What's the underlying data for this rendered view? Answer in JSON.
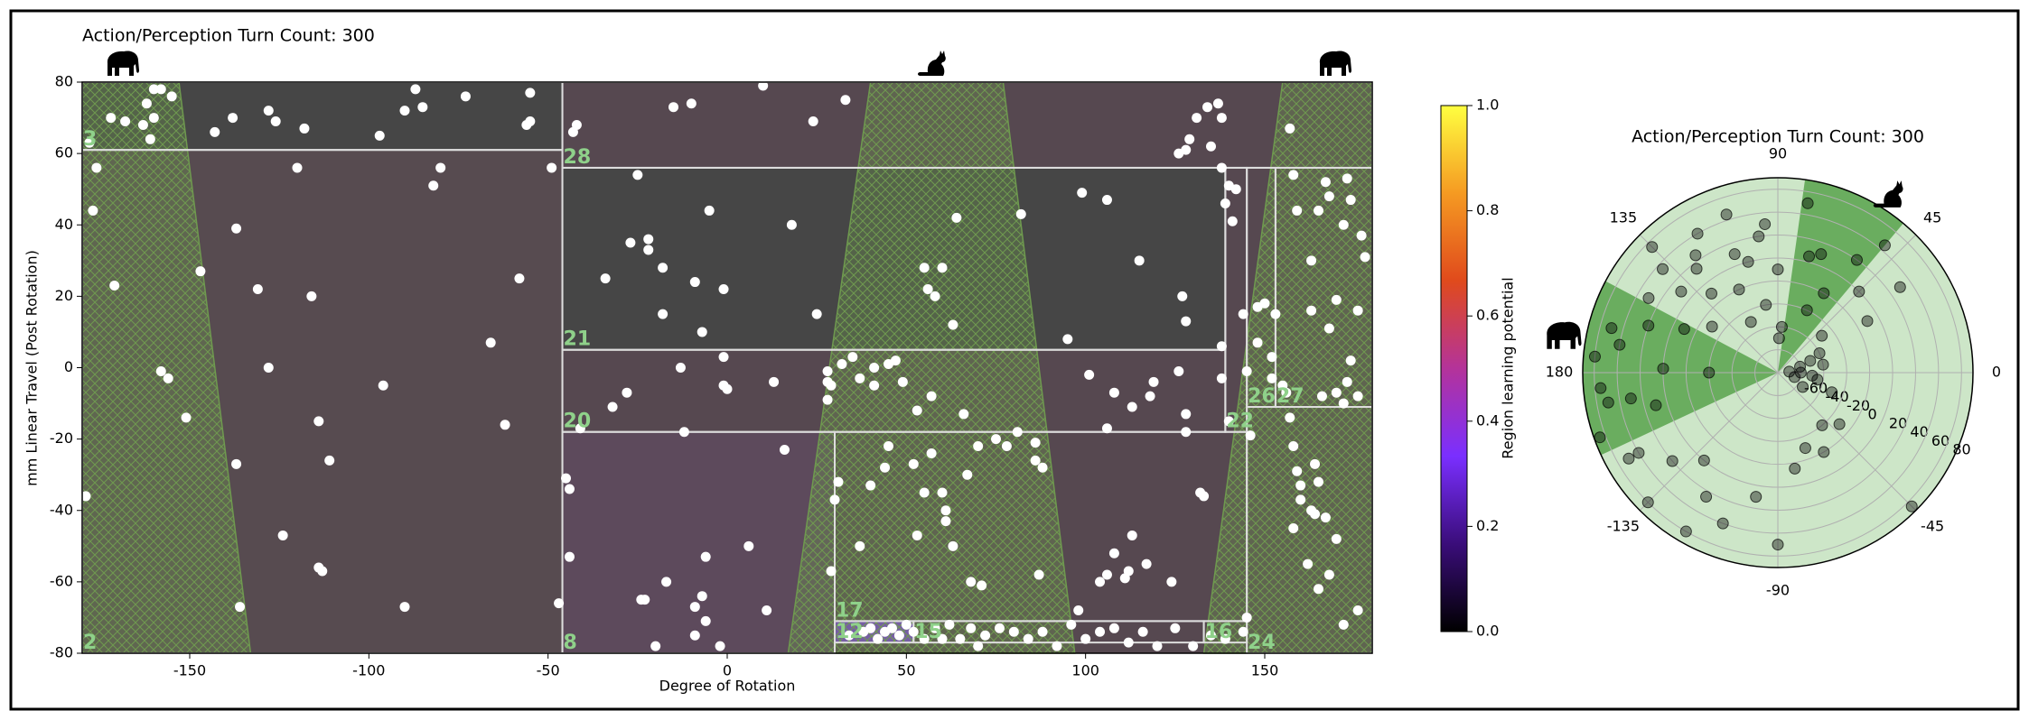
{
  "chart_data": [
    {
      "type": "scatter",
      "title": "Action/Perception Turn Count: 300",
      "x_label": "Degree of Rotation",
      "y_label": "mm Linear Travel (Post Rotation)",
      "xlim": [
        -180,
        180
      ],
      "ylim": [
        -80,
        80
      ],
      "xticks": [
        -150,
        -100,
        -50,
        0,
        50,
        100,
        150
      ],
      "yticks": [
        -80,
        -60,
        -40,
        -20,
        0,
        20,
        40,
        60,
        80
      ],
      "regions": [
        {
          "label": "3",
          "x": [
            -180,
            -46
          ],
          "y": [
            61,
            80
          ],
          "color": "#464646"
        },
        {
          "label": "2",
          "x": [
            -180,
            -46
          ],
          "y": [
            -80,
            61
          ],
          "color": "#574b50"
        },
        {
          "label": "28",
          "x": [
            -46,
            180
          ],
          "y": [
            56,
            80
          ],
          "color": "#564850"
        },
        {
          "label": "21",
          "x": [
            -46,
            139
          ],
          "y": [
            5,
            56
          ],
          "color": "#464646"
        },
        {
          "label": "20",
          "x": [
            -46,
            139
          ],
          "y": [
            -18,
            5
          ],
          "color": "#564850"
        },
        {
          "label": "8",
          "x": [
            -46,
            30
          ],
          "y": [
            -80,
            -18
          ],
          "color": "#5d4a5c"
        },
        {
          "label": "22",
          "x": [
            139,
            145
          ],
          "y": [
            -18,
            56
          ],
          "color": "#564850"
        },
        {
          "label": "26",
          "x": [
            145,
            153
          ],
          "y": [
            -11,
            56
          ],
          "color": "#564850"
        },
        {
          "label": "27",
          "x": [
            153,
            180
          ],
          "y": [
            -11,
            56
          ],
          "color": "#564850"
        },
        {
          "label": "24",
          "x": [
            145,
            180
          ],
          "y": [
            -80,
            -11
          ],
          "color": "#564850"
        },
        {
          "label": "17",
          "x": [
            30,
            145
          ],
          "y": [
            -71,
            -18
          ],
          "color": "#564850"
        },
        {
          "label": "12",
          "x": [
            30,
            52
          ],
          "y": [
            -77,
            -71
          ],
          "color": "#7a3fcf"
        },
        {
          "label": "15",
          "x": [
            52,
            133
          ],
          "y": [
            -77,
            -71
          ],
          "color": "#564850"
        },
        {
          "label": "16",
          "x": [
            133,
            145
          ],
          "y": [
            -77,
            -71
          ],
          "color": "#564850"
        }
      ],
      "region_label_color": "#8fd18a",
      "zones": [
        {
          "top": [
            -180,
            -153
          ],
          "bottom": [
            -180,
            -133
          ]
        },
        {
          "top": [
            40,
            77
          ],
          "bottom": [
            17,
            97
          ]
        },
        {
          "top": [
            155,
            180
          ],
          "bottom": [
            133,
            180
          ]
        }
      ],
      "zone_color": "#6f9a4f",
      "color": "#ffffff",
      "x": [
        -172,
        -168,
        -163,
        -160,
        -162,
        -158,
        -160,
        -161,
        -155,
        -143,
        -138,
        -128,
        -126,
        -118,
        -97,
        -90,
        -85,
        -87,
        -73,
        -56,
        -55,
        -55,
        -49,
        -120,
        -80,
        -82,
        -177,
        -176,
        -178,
        -171,
        -147,
        -137,
        -131,
        -116,
        -58,
        -66,
        -128,
        -158,
        -156,
        -151,
        -114,
        -111,
        -96,
        -62,
        -137,
        -179,
        -136,
        -124,
        -114,
        -113,
        -90,
        -47,
        -43,
        -42,
        -15,
        -10,
        10,
        24,
        33,
        -25,
        -5,
        18,
        -27,
        -22,
        -22,
        -18,
        -34,
        -9,
        -1,
        -18,
        -7,
        -1,
        -13,
        -1,
        0,
        -28,
        -32,
        -12,
        -41,
        -45,
        -44,
        13,
        -44,
        -23,
        -24,
        -17,
        -6,
        -7,
        -9,
        -6,
        6,
        -2,
        -20,
        -9,
        11,
        16,
        25,
        28,
        28,
        29,
        28,
        30,
        31,
        29,
        37,
        40,
        44,
        45,
        53,
        52,
        53,
        55,
        57,
        60,
        61,
        61,
        63,
        67,
        66,
        68,
        70,
        71,
        75,
        78,
        81,
        86,
        86,
        87,
        88,
        41,
        41,
        32,
        35,
        37,
        45,
        47,
        49,
        57,
        55,
        56,
        58,
        60,
        63,
        64,
        82,
        101,
        95,
        99,
        106,
        108,
        113,
        115,
        119,
        106,
        118,
        128,
        128,
        126,
        128,
        127,
        133,
        132,
        138,
        138,
        139,
        140,
        142,
        141,
        144,
        145,
        140,
        146,
        148,
        150,
        138,
        135,
        131,
        129,
        128,
        126,
        134,
        137,
        138,
        148,
        152,
        153,
        157,
        152,
        155,
        156,
        157,
        158,
        159,
        160,
        163,
        164,
        165,
        160,
        167,
        168,
        165,
        170,
        172,
        176,
        158,
        162,
        164,
        163,
        159,
        163,
        158,
        165,
        167,
        168,
        173,
        174,
        177,
        178,
        176,
        170,
        173,
        176,
        172,
        170,
        166,
        174,
        168,
        172,
        113,
        112,
        108,
        111,
        117,
        124,
        104,
        106,
        98,
        34,
        38,
        40,
        42,
        44,
        46,
        48,
        50,
        52,
        55,
        58,
        60,
        62,
        65,
        68,
        70,
        72,
        76,
        80,
        84,
        88,
        92,
        96,
        100,
        104,
        108,
        112,
        116,
        120,
        125,
        130,
        135,
        139,
        144,
        145
      ],
      "values": [
        70,
        69,
        68,
        70,
        74,
        78,
        78,
        64,
        76,
        66,
        70,
        72,
        69,
        67,
        65,
        72,
        73,
        78,
        76,
        68,
        69,
        77,
        56,
        56,
        56,
        51,
        44,
        56,
        63,
        23,
        27,
        39,
        22,
        20,
        25,
        7,
        0,
        -1,
        -3,
        -14,
        -15,
        -26,
        -5,
        -16,
        -27,
        -36,
        -67,
        -47,
        -56,
        -57,
        -67,
        -66,
        66,
        68,
        73,
        74,
        79,
        69,
        75,
        54,
        44,
        40,
        35,
        36,
        33,
        28,
        25,
        24,
        22,
        15,
        10,
        3,
        0,
        -5,
        -6,
        -7,
        -11,
        -18,
        -17,
        -31,
        -34,
        -4,
        -53,
        -65,
        -65,
        -60,
        -53,
        -64,
        -67,
        -71,
        -50,
        -78,
        -78,
        -75,
        -68,
        -23,
        15,
        -1,
        -4,
        -5,
        -9,
        -37,
        -32,
        -57,
        -50,
        -33,
        -28,
        -22,
        -12,
        -27,
        -47,
        -35,
        -24,
        -35,
        -40,
        -43,
        -50,
        -30,
        -13,
        -60,
        -22,
        -61,
        -20,
        -22,
        -18,
        -21,
        -26,
        -58,
        -28,
        0,
        -5,
        1,
        3,
        -3,
        1,
        2,
        -4,
        -8,
        28,
        22,
        20,
        28,
        12,
        42,
        43,
        -2,
        8,
        49,
        47,
        -7,
        -11,
        30,
        -4,
        -17,
        -8,
        -13,
        -18,
        -1,
        13,
        20,
        -36,
        -35,
        -3,
        6,
        46,
        51,
        50,
        41,
        15,
        -1,
        -15,
        -19,
        17,
        18,
        56,
        62,
        70,
        64,
        61,
        60,
        73,
        74,
        70,
        7,
        3,
        15,
        67,
        -3,
        -5,
        -7,
        -14,
        -22,
        -29,
        -37,
        -40,
        -41,
        -32,
        -33,
        -42,
        -58,
        -62,
        -48,
        -72,
        -68,
        -45,
        -55,
        -27,
        16,
        44,
        30,
        54,
        44,
        52,
        48,
        53,
        47,
        37,
        31,
        16,
        19,
        -4,
        -8,
        -10,
        -7,
        -8,
        2,
        11,
        40,
        -47,
        -57,
        -52,
        -59,
        -55,
        -60,
        -60,
        -58,
        -68,
        -75,
        -74,
        -73,
        -76,
        -74,
        -73,
        -75,
        -72,
        -74,
        -76,
        -73,
        -76,
        -72,
        -76,
        -73,
        -78,
        -75,
        -73,
        -74,
        -76,
        -74,
        -78,
        -72,
        -76,
        -74,
        -73,
        -77,
        -74,
        -78,
        -73,
        -78,
        -75,
        -76,
        -74,
        -70
      ]
    },
    {
      "type": "colorbar",
      "label": "Region learning potential",
      "ylim": [
        0,
        1
      ],
      "yticks": [
        {
          "value": 0,
          "label": "0.0"
        },
        {
          "value": 0.2,
          "label": "0.2"
        },
        {
          "value": 0.4,
          "label": "0.4"
        },
        {
          "value": 0.6,
          "label": "0.6"
        },
        {
          "value": 0.8,
          "label": "0.8"
        },
        {
          "value": 1,
          "label": "1.0"
        }
      ],
      "colors": [
        "#000000",
        "#3a0d7a",
        "#7a2fff",
        "#b4339a",
        "#e04a1c",
        "#f59a22",
        "#ffff40"
      ]
    },
    {
      "type": "polar",
      "title": "Action/Perception Turn Count: 300",
      "theta_ticks": [
        0,
        45,
        90,
        135,
        180,
        -135,
        -90,
        -45
      ],
      "rlim": [
        -80,
        90
      ],
      "rticks": [
        -60,
        -40,
        -20,
        0,
        20,
        40,
        60,
        80
      ],
      "disk_color": "#cde6c8",
      "sector_color": "#6aad5f",
      "sectors": [
        {
          "theta": [
            50,
            82
          ]
        },
        {
          "theta": [
            152,
            205
          ]
        }
      ],
      "color": "#000000",
      "x": [
        170,
        165,
        160,
        175,
        178,
        150,
        140,
        135,
        130,
        125,
        120,
        115,
        110,
        105,
        100,
        95,
        90,
        85,
        80,
        70,
        60,
        55,
        50,
        45,
        40,
        30,
        20,
        10,
        0,
        -10,
        -20,
        -30,
        -40,
        -45,
        -50,
        -60,
        -70,
        -80,
        -90,
        -100,
        -110,
        -120,
        -130,
        -135,
        -140,
        -150,
        -160,
        -170,
        -175,
        180,
        155,
        145,
        138,
        128,
        118,
        108,
        98,
        88,
        75,
        65,
        35,
        25,
        15,
        5,
        -5,
        -15,
        -120,
        -150,
        -165,
        -170
      ],
      "values": [
        60,
        70,
        40,
        80,
        20,
        50,
        30,
        75,
        10,
        45,
        60,
        0,
        30,
        20,
        -20,
        50,
        10,
        -40,
        70,
        30,
        0,
        40,
        65,
        20,
        -30,
        10,
        -50,
        -40,
        -60,
        -45,
        -30,
        -55,
        -10,
        85,
        -20,
        0,
        -10,
        5,
        70,
        30,
        60,
        80,
        20,
        80,
        40,
        70,
        85,
        50,
        75,
        -20,
        10,
        -10,
        55,
        35,
        -30,
        65,
        40,
        -50,
        25,
        -20,
        50,
        -40,
        -60,
        -70,
        -50,
        -65,
        45,
        60,
        30,
        70
      ]
    }
  ]
}
